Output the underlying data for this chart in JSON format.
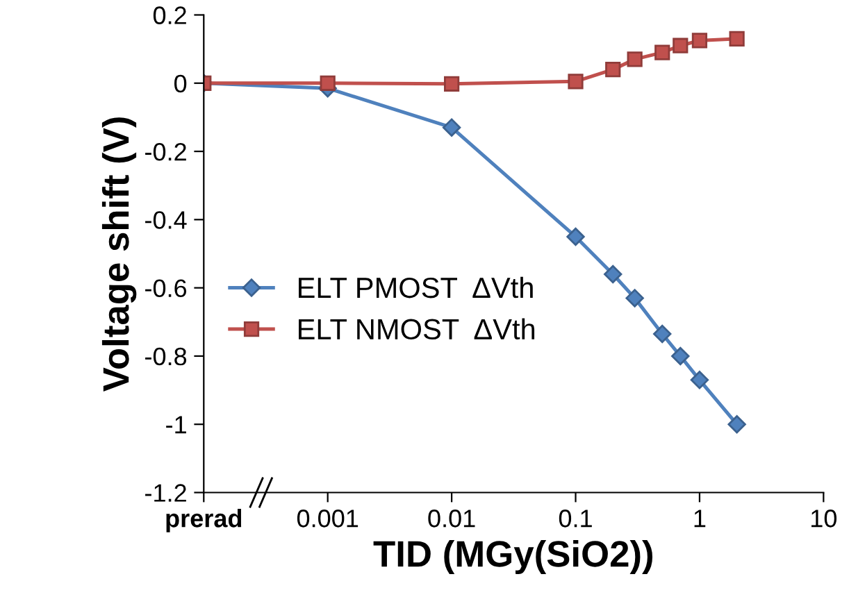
{
  "chart_data": {
    "type": "line",
    "xlabel": "TID (MGy(SiO2))",
    "ylabel": "Voltage shift (V)",
    "log": "x",
    "xlim": [
      0.0001,
      10
    ],
    "xticks": [
      {
        "value": 0.0001,
        "label": "prerad"
      },
      0.001,
      0.01,
      0.1,
      1,
      10
    ],
    "ylim": [
      -1.2,
      0.2
    ],
    "yticks": [
      -1.2,
      -1,
      -0.8,
      -0.6,
      -0.4,
      -0.2,
      0,
      0.2
    ],
    "grid": false,
    "legend": "left",
    "series": [
      {
        "name": "ELT PMOST  ΔVth",
        "color": "#4f81bd",
        "marker": "diamond",
        "x": [
          0.0001,
          0.001,
          0.01,
          0.1,
          0.2,
          0.3,
          0.5,
          0.7,
          1,
          2
        ],
        "values": [
          0,
          -0.015,
          -0.13,
          -0.45,
          -0.56,
          -0.63,
          -0.735,
          -0.8,
          -0.87,
          -1.0
        ]
      },
      {
        "name": "ELT NMOST  ΔVth",
        "color": "#c0504d",
        "marker": "square",
        "x": [
          0.0001,
          0.001,
          0.01,
          0.1,
          0.2,
          0.3,
          0.5,
          0.7,
          1,
          2
        ],
        "values": [
          0,
          0,
          -0.002,
          0.005,
          0.04,
          0.07,
          0.09,
          0.11,
          0.125,
          0.13
        ]
      }
    ]
  }
}
